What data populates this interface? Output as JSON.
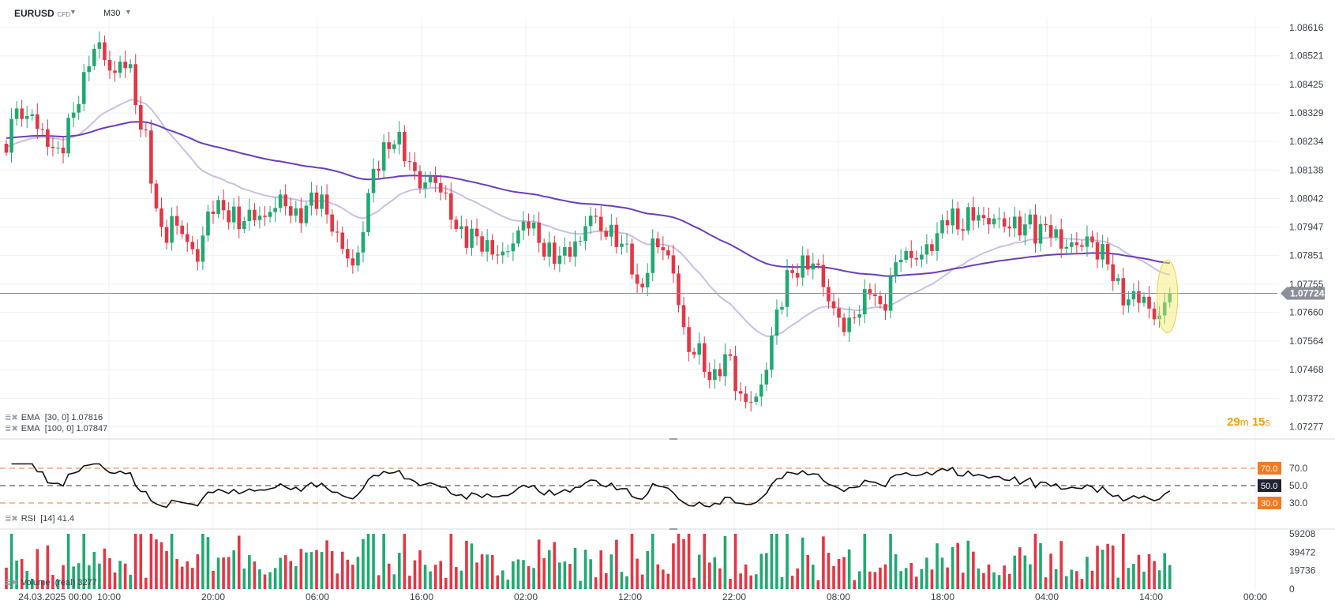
{
  "header": {
    "symbol": "EURUSD",
    "instrument_type": "CFD",
    "timeframe": "M30"
  },
  "countdown": {
    "minutes": "29",
    "minutes_unit": "m",
    "seconds": "15",
    "seconds_unit": "s"
  },
  "colors": {
    "bull": "#20a970",
    "bear": "#e53544",
    "ema_fast": "#c9bfe4",
    "ema_slow": "#6a3dbf",
    "rsi_line": "#111111",
    "rsi_bands": "#f27a24",
    "price_line": "#8a8f98",
    "highlight": "#f6e96b"
  },
  "chart_data": [
    {
      "type": "candlestick",
      "symbol": "EURUSD",
      "timeframe": "M30",
      "y_ticks": [
        "1.08616",
        "1.08521",
        "1.08425",
        "1.08329",
        "1.08234",
        "1.08138",
        "1.08042",
        "1.07947",
        "1.07851",
        "1.07755",
        "1.07660",
        "1.07564",
        "1.07468",
        "1.07372",
        "1.07277"
      ],
      "ylim": [
        1.0723,
        1.0865
      ],
      "x_ticks": [
        "24.03.2025  00:00",
        "10:00",
        "20:00",
        "06:00",
        "16:00",
        "02:00",
        "12:00",
        "22:00",
        "08:00",
        "18:00",
        "04:00",
        "14:00",
        "00:00"
      ],
      "last_price": "1.07724",
      "indicators": [
        {
          "name": "EMA",
          "params": "[30, 0]",
          "value": "1.07816"
        },
        {
          "name": "EMA",
          "params": "[100, 0]",
          "value": "1.07847"
        }
      ],
      "candle_waypoints": [
        1.0818,
        1.0838,
        1.0829,
        1.0834,
        1.0826,
        1.0824,
        1.0818,
        1.0824,
        1.0833,
        1.084,
        1.0851,
        1.0857,
        1.085,
        1.0845,
        1.0852,
        1.0846,
        1.083,
        1.0822,
        1.08,
        1.079,
        1.0797,
        1.0794,
        1.0788,
        1.0784,
        1.0796,
        1.0803,
        1.08,
        1.0799,
        1.0796,
        1.0798,
        1.0799,
        1.0797,
        1.0801,
        1.0804,
        1.0801,
        1.0797,
        1.0801,
        1.0805,
        1.0803,
        1.0796,
        1.079,
        1.0785,
        1.078,
        1.0796,
        1.0812,
        1.0818,
        1.0822,
        1.0825,
        1.0819,
        1.0813,
        1.0808,
        1.0811,
        1.0809,
        1.0803,
        1.0795,
        1.0791,
        1.0792,
        1.079,
        1.0787,
        1.0786,
        1.0785,
        1.079,
        1.0795,
        1.0797,
        1.079,
        1.0786,
        1.0785,
        1.0785,
        1.0788,
        1.0789,
        1.0799,
        1.0797,
        1.0792,
        1.0793,
        1.0788,
        1.0787,
        1.0771,
        1.0779,
        1.0791,
        1.0787,
        1.0783,
        1.0768,
        1.0752,
        1.0755,
        1.0748,
        1.0742,
        1.0749,
        1.0752,
        1.0738,
        1.0736,
        1.0737,
        1.0741,
        1.0757,
        1.0768,
        1.0778,
        1.078,
        1.0782,
        1.0783,
        1.0779,
        1.0769,
        1.0765,
        1.076,
        1.0765,
        1.0768,
        1.0776,
        1.0766,
        1.0771,
        1.0783,
        1.0786,
        1.0784,
        1.0785,
        1.0788,
        1.0791,
        1.0799,
        1.0797,
        1.0794,
        1.08,
        1.0798,
        1.0796,
        1.0798,
        1.0795,
        1.0796,
        1.0794,
        1.0797,
        1.0792,
        1.0795,
        1.0793,
        1.0788,
        1.0789,
        1.0788,
        1.0791,
        1.0787,
        1.0786,
        1.078,
        1.0772,
        1.077,
        1.0772,
        1.077,
        1.0764,
        1.0766,
        1.0771
      ]
    },
    {
      "type": "line",
      "indicator": "RSI",
      "params": "[14]",
      "value": "41.4",
      "levels": [
        "70.0",
        "50.0",
        "30.0"
      ],
      "ylim": [
        0,
        100
      ]
    },
    {
      "type": "bar",
      "indicator": "Volume",
      "params": "(real)",
      "value": "3277",
      "y_ticks": [
        "59208",
        "39472",
        "19736",
        "0"
      ],
      "ylim": [
        0,
        59208
      ]
    }
  ]
}
